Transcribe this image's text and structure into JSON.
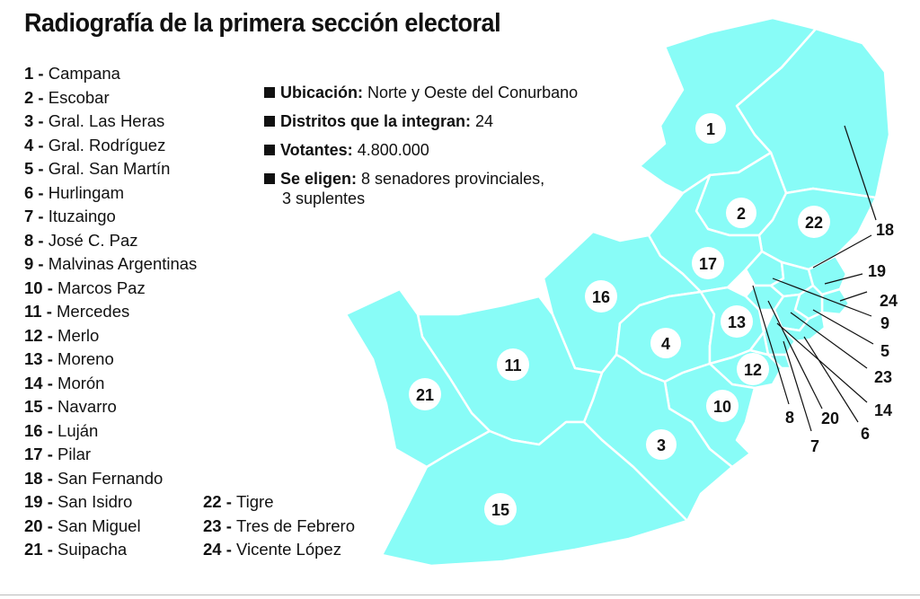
{
  "title": "Radiografía de la primera sección electoral",
  "legend_left": [
    {
      "num": "1",
      "name": "Campana"
    },
    {
      "num": "2",
      "name": "Escobar"
    },
    {
      "num": "3",
      "name": "Gral. Las Heras"
    },
    {
      "num": "4",
      "name": "Gral. Rodríguez"
    },
    {
      "num": "5",
      "name": "Gral. San Martín"
    },
    {
      "num": "6",
      "name": "Hurlingam"
    },
    {
      "num": "7",
      "name": "Ituzaingo"
    },
    {
      "num": "8",
      "name": "José C. Paz"
    },
    {
      "num": "9",
      "name": "Malvinas Argentinas"
    },
    {
      "num": "10",
      "name": "Marcos Paz"
    },
    {
      "num": "11",
      "name": "Mercedes"
    },
    {
      "num": "12",
      "name": "Merlo"
    },
    {
      "num": "13",
      "name": "Moreno"
    },
    {
      "num": "14",
      "name": "Morón"
    },
    {
      "num": "15",
      "name": "Navarro"
    },
    {
      "num": "16",
      "name": "Luján"
    },
    {
      "num": "17",
      "name": "Pilar"
    },
    {
      "num": "18",
      "name": "San Fernando"
    },
    {
      "num": "19",
      "name": "San Isidro"
    },
    {
      "num": "20",
      "name": "San Miguel"
    },
    {
      "num": "21",
      "name": "Suipacha"
    }
  ],
  "legend_right": [
    {
      "num": "22",
      "name": "Tigre"
    },
    {
      "num": "23",
      "name": "Tres de Febrero"
    },
    {
      "num": "24",
      "name": "Vicente López"
    }
  ],
  "info": {
    "ubicacion_label": "Ubicación:",
    "ubicacion_value": "Norte y Oeste del Conurbano",
    "distritos_label": "Distritos que la integran:",
    "distritos_value": "24",
    "votantes_label": "Votantes:",
    "votantes_value": "4.800.000",
    "eligen_label": "Se eligen:",
    "eligen_value": "8 senadores provinciales,",
    "eligen_value_cont": "3 suplentes"
  },
  "map": {
    "fill_color": "#88fcf7",
    "district_labels": [
      "1",
      "2",
      "22",
      "17",
      "16",
      "4",
      "13",
      "12",
      "11",
      "21",
      "10",
      "3",
      "15"
    ],
    "callout_labels": [
      "18",
      "19",
      "24",
      "9",
      "5",
      "23",
      "14",
      "6",
      "20",
      "7",
      "8"
    ]
  }
}
